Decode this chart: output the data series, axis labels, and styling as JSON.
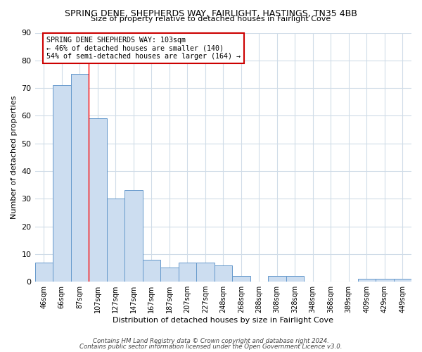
{
  "title": "SPRING DENE, SHEPHERDS WAY, FAIRLIGHT, HASTINGS, TN35 4BB",
  "subtitle": "Size of property relative to detached houses in Fairlight Cove",
  "xlabel": "Distribution of detached houses by size in Fairlight Cove",
  "ylabel": "Number of detached properties",
  "categories": [
    "46sqm",
    "66sqm",
    "87sqm",
    "107sqm",
    "127sqm",
    "147sqm",
    "167sqm",
    "187sqm",
    "207sqm",
    "227sqm",
    "248sqm",
    "268sqm",
    "288sqm",
    "308sqm",
    "328sqm",
    "348sqm",
    "368sqm",
    "389sqm",
    "409sqm",
    "429sqm",
    "449sqm"
  ],
  "values": [
    7,
    71,
    75,
    59,
    30,
    33,
    8,
    5,
    7,
    7,
    6,
    2,
    0,
    2,
    2,
    0,
    0,
    0,
    1,
    1,
    1
  ],
  "bar_color": "#ccddf0",
  "bar_edge_color": "#6699cc",
  "red_line_x": 3,
  "annotation_line1": "SPRING DENE SHEPHERDS WAY: 103sqm",
  "annotation_line2": "← 46% of detached houses are smaller (140)",
  "annotation_line3": "54% of semi-detached houses are larger (164) →",
  "annotation_box_color": "#ffffff",
  "annotation_box_edge": "#cc0000",
  "plot_bg_color": "#ffffff",
  "fig_bg_color": "#ffffff",
  "grid_color": "#d0dce8",
  "footer_line1": "Contains HM Land Registry data © Crown copyright and database right 2024.",
  "footer_line2": "Contains public sector information licensed under the Open Government Licence v3.0.",
  "ylim": [
    0,
    90
  ],
  "yticks": [
    0,
    10,
    20,
    30,
    40,
    50,
    60,
    70,
    80,
    90
  ]
}
